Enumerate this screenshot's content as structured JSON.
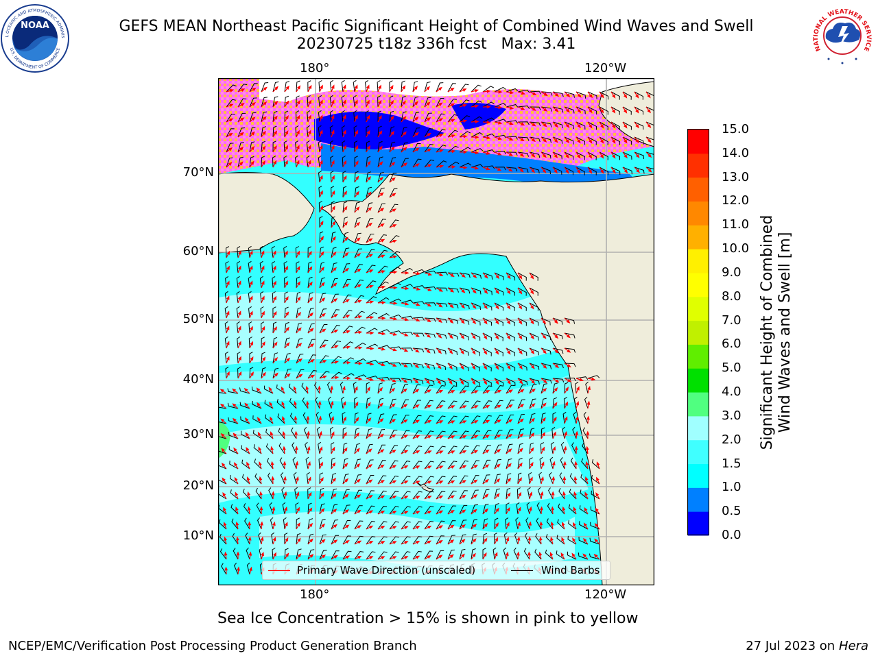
{
  "header": {
    "title_line1": "GEFS MEAN Northeast Pacific Significant Height of Combined Wind Waves and Swell",
    "title_line2": "20230725 t18z 336h fcst   Max: 3.41"
  },
  "logos": {
    "noaa_text": "NOAA",
    "noaa_ring_text": "NATIONAL OCEANIC AND ATMOSPHERIC ADMINISTRATION",
    "noaa_ring_text_bottom": "U.S. DEPARTMENT OF COMMERCE",
    "nws_ring_text": "NATIONAL WEATHER SERVICE"
  },
  "map": {
    "lon_labels_top": [
      "180°",
      "120°W"
    ],
    "lon_labels_bottom": [
      "180°",
      "120°W"
    ],
    "lat_labels": [
      "70°N",
      "60°N",
      "50°N",
      "40°N",
      "30°N",
      "20°N",
      "10°N"
    ],
    "lat_lines": [
      70,
      60,
      50,
      40,
      30,
      20,
      10
    ],
    "lon_lines": [
      180,
      -120
    ],
    "colors": {
      "land": "#efeddb",
      "coast": "#000000",
      "grid": "#b0b0b0",
      "arrow": "#ff0000",
      "barb": "#000000"
    }
  },
  "legend": {
    "wave_label": "Primary Wave Direction (unscaled)",
    "barb_label": "Wind Barbs"
  },
  "colorbar": {
    "title_line1": "Significant Height of Combined",
    "title_line2": "Wind Waves and Swell [m]",
    "ticks": [
      "15.0",
      "14.0",
      "13.0",
      "12.0",
      "11.0",
      "10.0",
      "9.0",
      "8.0",
      "7.0",
      "6.0",
      "5.0",
      "4.0",
      "3.0",
      "2.0",
      "1.5",
      "1.0",
      "0.5",
      "0.0"
    ],
    "colors_bottom_to_top": [
      "#0000ff",
      "#0080ff",
      "#00ffff",
      "#40ffff",
      "#a0ffff",
      "#50ff80",
      "#00e000",
      "#60ee00",
      "#c0f000",
      "#e0ff00",
      "#ffff00",
      "#fff000",
      "#ffb000",
      "#ff8800",
      "#ff6000",
      "#ff3000",
      "#ff0000"
    ]
  },
  "caption": "Sea Ice Concentration > 15% is shown in pink to yellow",
  "footer": {
    "left": "NCEP/EMC/Verification Post Processing Product Generation Branch",
    "right_prefix": "27 Jul 2023 on ",
    "right_machine": "Hera"
  }
}
